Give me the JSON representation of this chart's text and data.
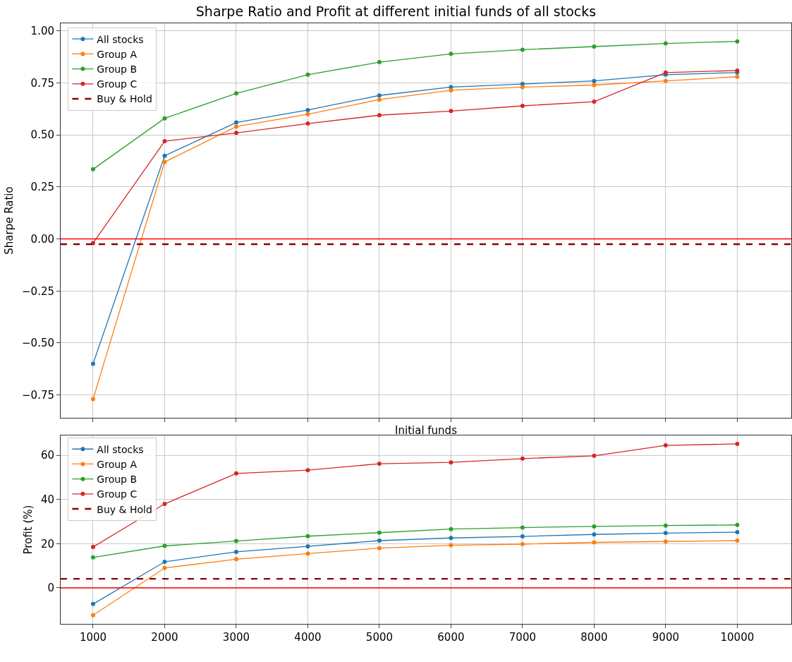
{
  "chart_data": [
    {
      "type": "line",
      "title": "Sharpe Ratio and Profit at different initial funds of all stocks",
      "xlabel": "Initial funds",
      "ylabel": "Sharpe Ratio",
      "x": [
        1000,
        2000,
        3000,
        4000,
        5000,
        6000,
        7000,
        8000,
        9000,
        10000
      ],
      "series": [
        {
          "name": "All stocks",
          "color": "#1f77b4",
          "values": [
            -0.6,
            0.4,
            0.56,
            0.62,
            0.69,
            0.73,
            0.745,
            0.76,
            0.79,
            0.8
          ]
        },
        {
          "name": "Group A",
          "color": "#ff7f0e",
          "values": [
            -0.77,
            0.37,
            0.54,
            0.6,
            0.67,
            0.715,
            0.73,
            0.74,
            0.76,
            0.78
          ]
        },
        {
          "name": "Group B",
          "color": "#2ca02c",
          "values": [
            0.335,
            0.58,
            0.7,
            0.79,
            0.85,
            0.89,
            0.91,
            0.925,
            0.94,
            0.95
          ]
        },
        {
          "name": "Group C",
          "color": "#d62728",
          "values": [
            -0.02,
            0.47,
            0.51,
            0.555,
            0.595,
            0.615,
            0.64,
            0.66,
            0.8,
            0.81
          ]
        }
      ],
      "ref_lines": [
        {
          "axis": "y",
          "value": 0,
          "label": null,
          "color": "#ff0000",
          "line_style": "solid"
        },
        {
          "axis": "y",
          "value": -0.025,
          "label": "Buy & Hold",
          "color": "#8b0000",
          "line_style": "dashed"
        }
      ],
      "xlim": [
        547,
        10755
      ],
      "xticks": [
        {
          "value": 1000,
          "label": null
        },
        {
          "value": 2000,
          "label": null
        },
        {
          "value": 3000,
          "label": null
        },
        {
          "value": 4000,
          "label": null
        },
        {
          "value": 5000,
          "label": null
        },
        {
          "value": 6000,
          "label": null
        },
        {
          "value": 7000,
          "label": null
        },
        {
          "value": 8000,
          "label": null
        },
        {
          "value": 9000,
          "label": null
        },
        {
          "value": 10000,
          "label": null
        }
      ],
      "ylim": [
        -0.86,
        1.037
      ],
      "yticks": [
        {
          "value": -0.75,
          "label": "−0.75"
        },
        {
          "value": -0.5,
          "label": "−0.50"
        },
        {
          "value": -0.25,
          "label": "−0.25"
        },
        {
          "value": 0,
          "label": "0.00"
        },
        {
          "value": 0.25,
          "label": "0.25"
        },
        {
          "value": 0.5,
          "label": "0.50"
        },
        {
          "value": 0.75,
          "label": "0.75"
        },
        {
          "value": 1.0,
          "label": "1.00"
        }
      ],
      "tick_labels": "y",
      "grid": true,
      "legend": "top left",
      "marker": "circle",
      "line_style": "solid"
    },
    {
      "type": "line",
      "ylabel": "Profit (%)",
      "x": [
        1000,
        2000,
        3000,
        4000,
        5000,
        6000,
        7000,
        8000,
        9000,
        10000
      ],
      "series": [
        {
          "name": "All stocks",
          "color": "#1f77b4",
          "values": [
            -7.3,
            11.8,
            16.3,
            18.8,
            21.4,
            22.6,
            23.3,
            24.2,
            24.8,
            25.2
          ]
        },
        {
          "name": "Group A",
          "color": "#ff7f0e",
          "values": [
            -12.4,
            9,
            13,
            15.5,
            18,
            19.3,
            19.8,
            20.6,
            21,
            21.4
          ]
        },
        {
          "name": "Group B",
          "color": "#2ca02c",
          "values": [
            13.8,
            19,
            21.2,
            23.4,
            25,
            26.6,
            27.3,
            27.8,
            28.2,
            28.5
          ]
        },
        {
          "name": "Group C",
          "color": "#d62728",
          "values": [
            18.5,
            38,
            51.8,
            53.3,
            56.2,
            56.8,
            58.5,
            59.8,
            64.5,
            65.2
          ]
        }
      ],
      "ref_lines": [
        {
          "axis": "y",
          "value": 0,
          "label": null,
          "color": "#ff0000",
          "line_style": "solid"
        },
        {
          "axis": "y",
          "value": 4.1,
          "label": "Buy & Hold",
          "color": "#8b0000",
          "line_style": "dashed"
        }
      ],
      "xlim": [
        547,
        10755
      ],
      "xticks": [
        1000,
        2000,
        3000,
        4000,
        5000,
        6000,
        7000,
        8000,
        9000,
        10000
      ],
      "ylim": [
        -16.3,
        69
      ],
      "yticks": [
        0,
        20,
        40,
        60
      ],
      "grid": true,
      "legend": "top left",
      "marker": "circle",
      "line_style": "solid"
    }
  ]
}
